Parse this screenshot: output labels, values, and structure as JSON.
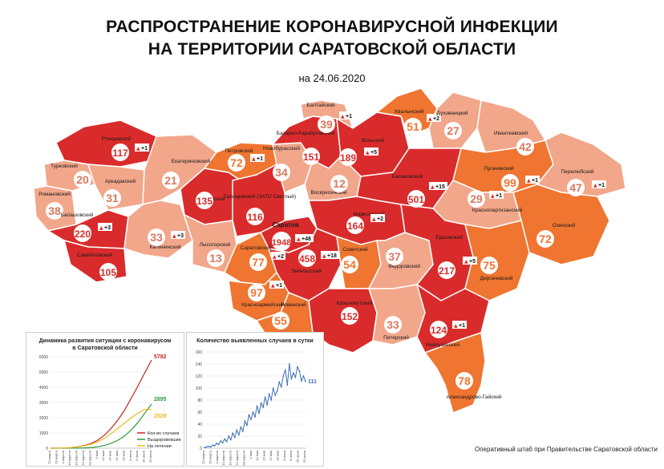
{
  "header": {
    "title_line1": "РАСПРОСТРАНЕНИЕ КОРОНАВИРУСНОЙ ИНФЕКЦИИ",
    "title_line2": "НА ТЕРРИТОРИИ САРАТОВСКОЙ ОБЛАСТИ",
    "date": "на 24.06.2020"
  },
  "colors": {
    "high": "#d92b2b",
    "medium": "#ef7530",
    "low": "#f2a68a",
    "border": "#ffffff",
    "circle": "#ffffff"
  },
  "districts": [
    {
      "name": "Ртищевский",
      "count": "117",
      "delta": "+1",
      "level": "high"
    },
    {
      "name": "Турковский",
      "count": "20",
      "level": "low"
    },
    {
      "name": "Аркадакский",
      "count": "31",
      "level": "low"
    },
    {
      "name": "Романовский",
      "count": "38",
      "level": "low"
    },
    {
      "name": "Балашовский",
      "count": "220",
      "delta": "+3",
      "level": "high"
    },
    {
      "name": "Самойловский",
      "count": "105",
      "level": "high"
    },
    {
      "name": "Екатериновский",
      "count": "21",
      "level": "low"
    },
    {
      "name": "Калининский",
      "count": "33",
      "delta": "+3",
      "level": "low"
    },
    {
      "name": "Аткарский",
      "count": "135",
      "level": "high"
    },
    {
      "name": "Петровский",
      "count": "72",
      "delta": "+1",
      "level": "medium"
    },
    {
      "name": "Лысогорский",
      "count": "13",
      "level": "low"
    },
    {
      "name": "Татищевский (ЗАТО Светлый)",
      "count": "116",
      "level": "high"
    },
    {
      "name": "Новобурасский",
      "count": "34",
      "level": "low"
    },
    {
      "name": "Базарно-Карабулакский",
      "count": "151",
      "level": "high"
    },
    {
      "name": "Балтайский",
      "count": "39",
      "delta": "+1",
      "level": "low"
    },
    {
      "name": "Вольский",
      "count": "189",
      "delta": "+5",
      "level": "high"
    },
    {
      "name": "Хвалынский",
      "count": "51",
      "delta": "+2",
      "level": "medium"
    },
    {
      "name": "Духовницкий",
      "count": "27",
      "level": "low"
    },
    {
      "name": "Ивантеевский",
      "count": "42",
      "level": "low"
    },
    {
      "name": "Воскресенский",
      "count": "12",
      "level": "low"
    },
    {
      "name": "Балаковский",
      "count": "501",
      "delta": "+15",
      "level": "high"
    },
    {
      "name": "Пугачевский",
      "count": "99",
      "delta": "+1",
      "level": "medium"
    },
    {
      "name": "Перелюбский",
      "count": "47",
      "delta": "+1",
      "level": "low"
    },
    {
      "name": "Краснопартизанский",
      "count": "29",
      "delta": "+1",
      "level": "low"
    },
    {
      "name": "Марксовский",
      "count": "164",
      "delta": "+2",
      "level": "high"
    },
    {
      "name": "Озинский",
      "count": "72",
      "level": "medium"
    },
    {
      "name": "Саратов",
      "count": "1948",
      "delta": "+48",
      "level": "high"
    },
    {
      "name": "Саратовский",
      "count": "77",
      "delta": "+2",
      "level": "medium"
    },
    {
      "name": "Энгельсский",
      "count": "458",
      "delta": "+18",
      "level": "high"
    },
    {
      "name": "Советский",
      "count": "54",
      "level": "medium"
    },
    {
      "name": "Федоровский",
      "count": "37",
      "level": "low"
    },
    {
      "name": "Ершовский",
      "count": "217",
      "delta": "+5",
      "level": "high"
    },
    {
      "name": "Дергачевский",
      "count": "75",
      "level": "medium"
    },
    {
      "name": "Красноармейский",
      "count": "97",
      "delta": "+1",
      "level": "medium"
    },
    {
      "name": "Ровенский",
      "count": "55",
      "level": "medium"
    },
    {
      "name": "Красноkутский",
      "count": "152",
      "level": "high"
    },
    {
      "name": "Питерский",
      "count": "33",
      "level": "low"
    },
    {
      "name": "Новоузенский",
      "count": "124",
      "delta": "+1",
      "level": "high"
    },
    {
      "name": "Александрово-Гайский",
      "count": "78",
      "level": "medium"
    }
  ],
  "chart_data": [
    {
      "type": "line",
      "title": "Динамика развития ситуации с коронавирусом в Саратовской области",
      "ylim": [
        0,
        6000
      ],
      "yticks": [
        "0",
        "1000",
        "2000",
        "3000",
        "4000",
        "5000",
        "6000"
      ],
      "x_labels": [
        "23 марта",
        "29 марта",
        "4 апреля",
        "10 апреля",
        "16 апреля",
        "22 апреля",
        "28 апреля",
        "4 мая",
        "10 мая",
        "16 мая",
        "22 мая",
        "28 мая",
        "3 июня",
        "9 июня",
        "15 июня",
        "22 июня"
      ],
      "series": [
        {
          "name": "Кол-во случаев",
          "color": "#c62828",
          "end_label": "5782",
          "values": [
            0,
            2,
            10,
            40,
            90,
            170,
            300,
            520,
            850,
            1300,
            1850,
            2500,
            3300,
            4100,
            4950,
            5782
          ]
        },
        {
          "name": "Выздоровевшие",
          "color": "#2e9b3a",
          "end_label": "2895",
          "values": [
            0,
            0,
            0,
            2,
            5,
            15,
            40,
            90,
            180,
            320,
            520,
            800,
            1200,
            1700,
            2300,
            2895
          ]
        },
        {
          "name": "На лечении",
          "color": "#e6c020",
          "end_label": "2529",
          "values": [
            0,
            2,
            10,
            38,
            85,
            150,
            250,
            420,
            650,
            950,
            1300,
            1650,
            2000,
            2300,
            2550,
            2529
          ]
        }
      ]
    },
    {
      "type": "line",
      "title": "Количество выявленных случаев в сутки",
      "ylim": [
        0,
        160
      ],
      "yticks": [
        "0",
        "20",
        "40",
        "60",
        "80",
        "100",
        "120",
        "140",
        "160"
      ],
      "x_labels": [
        "23 марта",
        "29 марта",
        "4 апреля",
        "10 апреля",
        "16 апреля",
        "22 апреля",
        "28 апреля",
        "4 мая",
        "10 мая",
        "16 мая",
        "22 мая",
        "28 мая",
        "3 июня",
        "9 июня",
        "15 июня",
        "22 июня"
      ],
      "series": [
        {
          "name": "",
          "color": "#3d6fb6",
          "end_label": "111",
          "values": [
            1,
            2,
            3,
            2,
            5,
            4,
            8,
            6,
            12,
            9,
            15,
            11,
            20,
            14,
            25,
            18,
            30,
            22,
            35,
            28,
            45,
            38,
            55,
            48,
            60,
            52,
            70,
            58,
            75,
            68,
            85,
            72,
            90,
            80,
            100,
            88,
            95,
            110,
            102,
            120,
            130,
            105,
            140,
            115,
            125,
            118,
            135,
            128,
            112,
            120,
            111
          ]
        }
      ]
    }
  ],
  "footer": "Оперативный штаб при Правительстве Саратовской области"
}
